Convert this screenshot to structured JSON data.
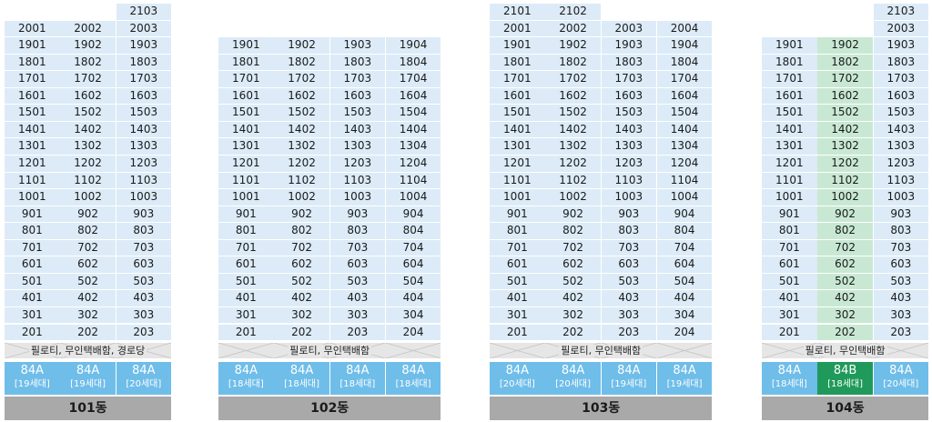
{
  "buildings": [
    {
      "name": "101동",
      "piloti": "필로티, 무인택배함, 경로당",
      "columns": [
        {
          "top": 20,
          "highlight": false,
          "type": "84A",
          "households": "[19세대]"
        },
        {
          "top": 20,
          "highlight": false,
          "type": "84A",
          "households": "[19세대]"
        },
        {
          "top": 21,
          "highlight": false,
          "type": "84A",
          "households": "[20세대]"
        }
      ],
      "col_index_base": 1
    },
    {
      "name": "102동",
      "piloti": "필로티, 무인택배함",
      "columns": [
        {
          "top": 19,
          "highlight": false,
          "type": "84A",
          "households": "[18세대]"
        },
        {
          "top": 19,
          "highlight": false,
          "type": "84A",
          "households": "[18세대]"
        },
        {
          "top": 19,
          "highlight": false,
          "type": "84A",
          "households": "[18세대]"
        },
        {
          "top": 19,
          "highlight": false,
          "type": "84A",
          "households": "[18세대]"
        }
      ]
    },
    {
      "name": "103동",
      "piloti": "필로티, 무인택배함",
      "columns": [
        {
          "top": 21,
          "highlight": false,
          "type": "84A",
          "households": "[20세대]"
        },
        {
          "top": 21,
          "highlight": false,
          "type": "84A",
          "households": "[20세대]"
        },
        {
          "top": 20,
          "highlight": false,
          "type": "84A",
          "households": "[19세대]"
        },
        {
          "top": 20,
          "highlight": false,
          "type": "84A",
          "households": "[19세대]"
        }
      ]
    },
    {
      "name": "104동",
      "piloti": "필로티, 무인택배함",
      "columns": [
        {
          "top": 19,
          "highlight": false,
          "type": "84A",
          "households": "[18세대]"
        },
        {
          "top": 19,
          "highlight": true,
          "type": "84B",
          "households": "[18세대]"
        },
        {
          "top": 21,
          "highlight": false,
          "type": "84A",
          "households": "[20세대]"
        }
      ]
    }
  ],
  "colors": {
    "unit": "#dcebf7",
    "unit_highlight": "#c9e8d4",
    "type": "#6fbde9",
    "type_highlight": "#1f9a5a",
    "piloti": "#e6e6e6",
    "building_label": "#a9a9a9"
  }
}
